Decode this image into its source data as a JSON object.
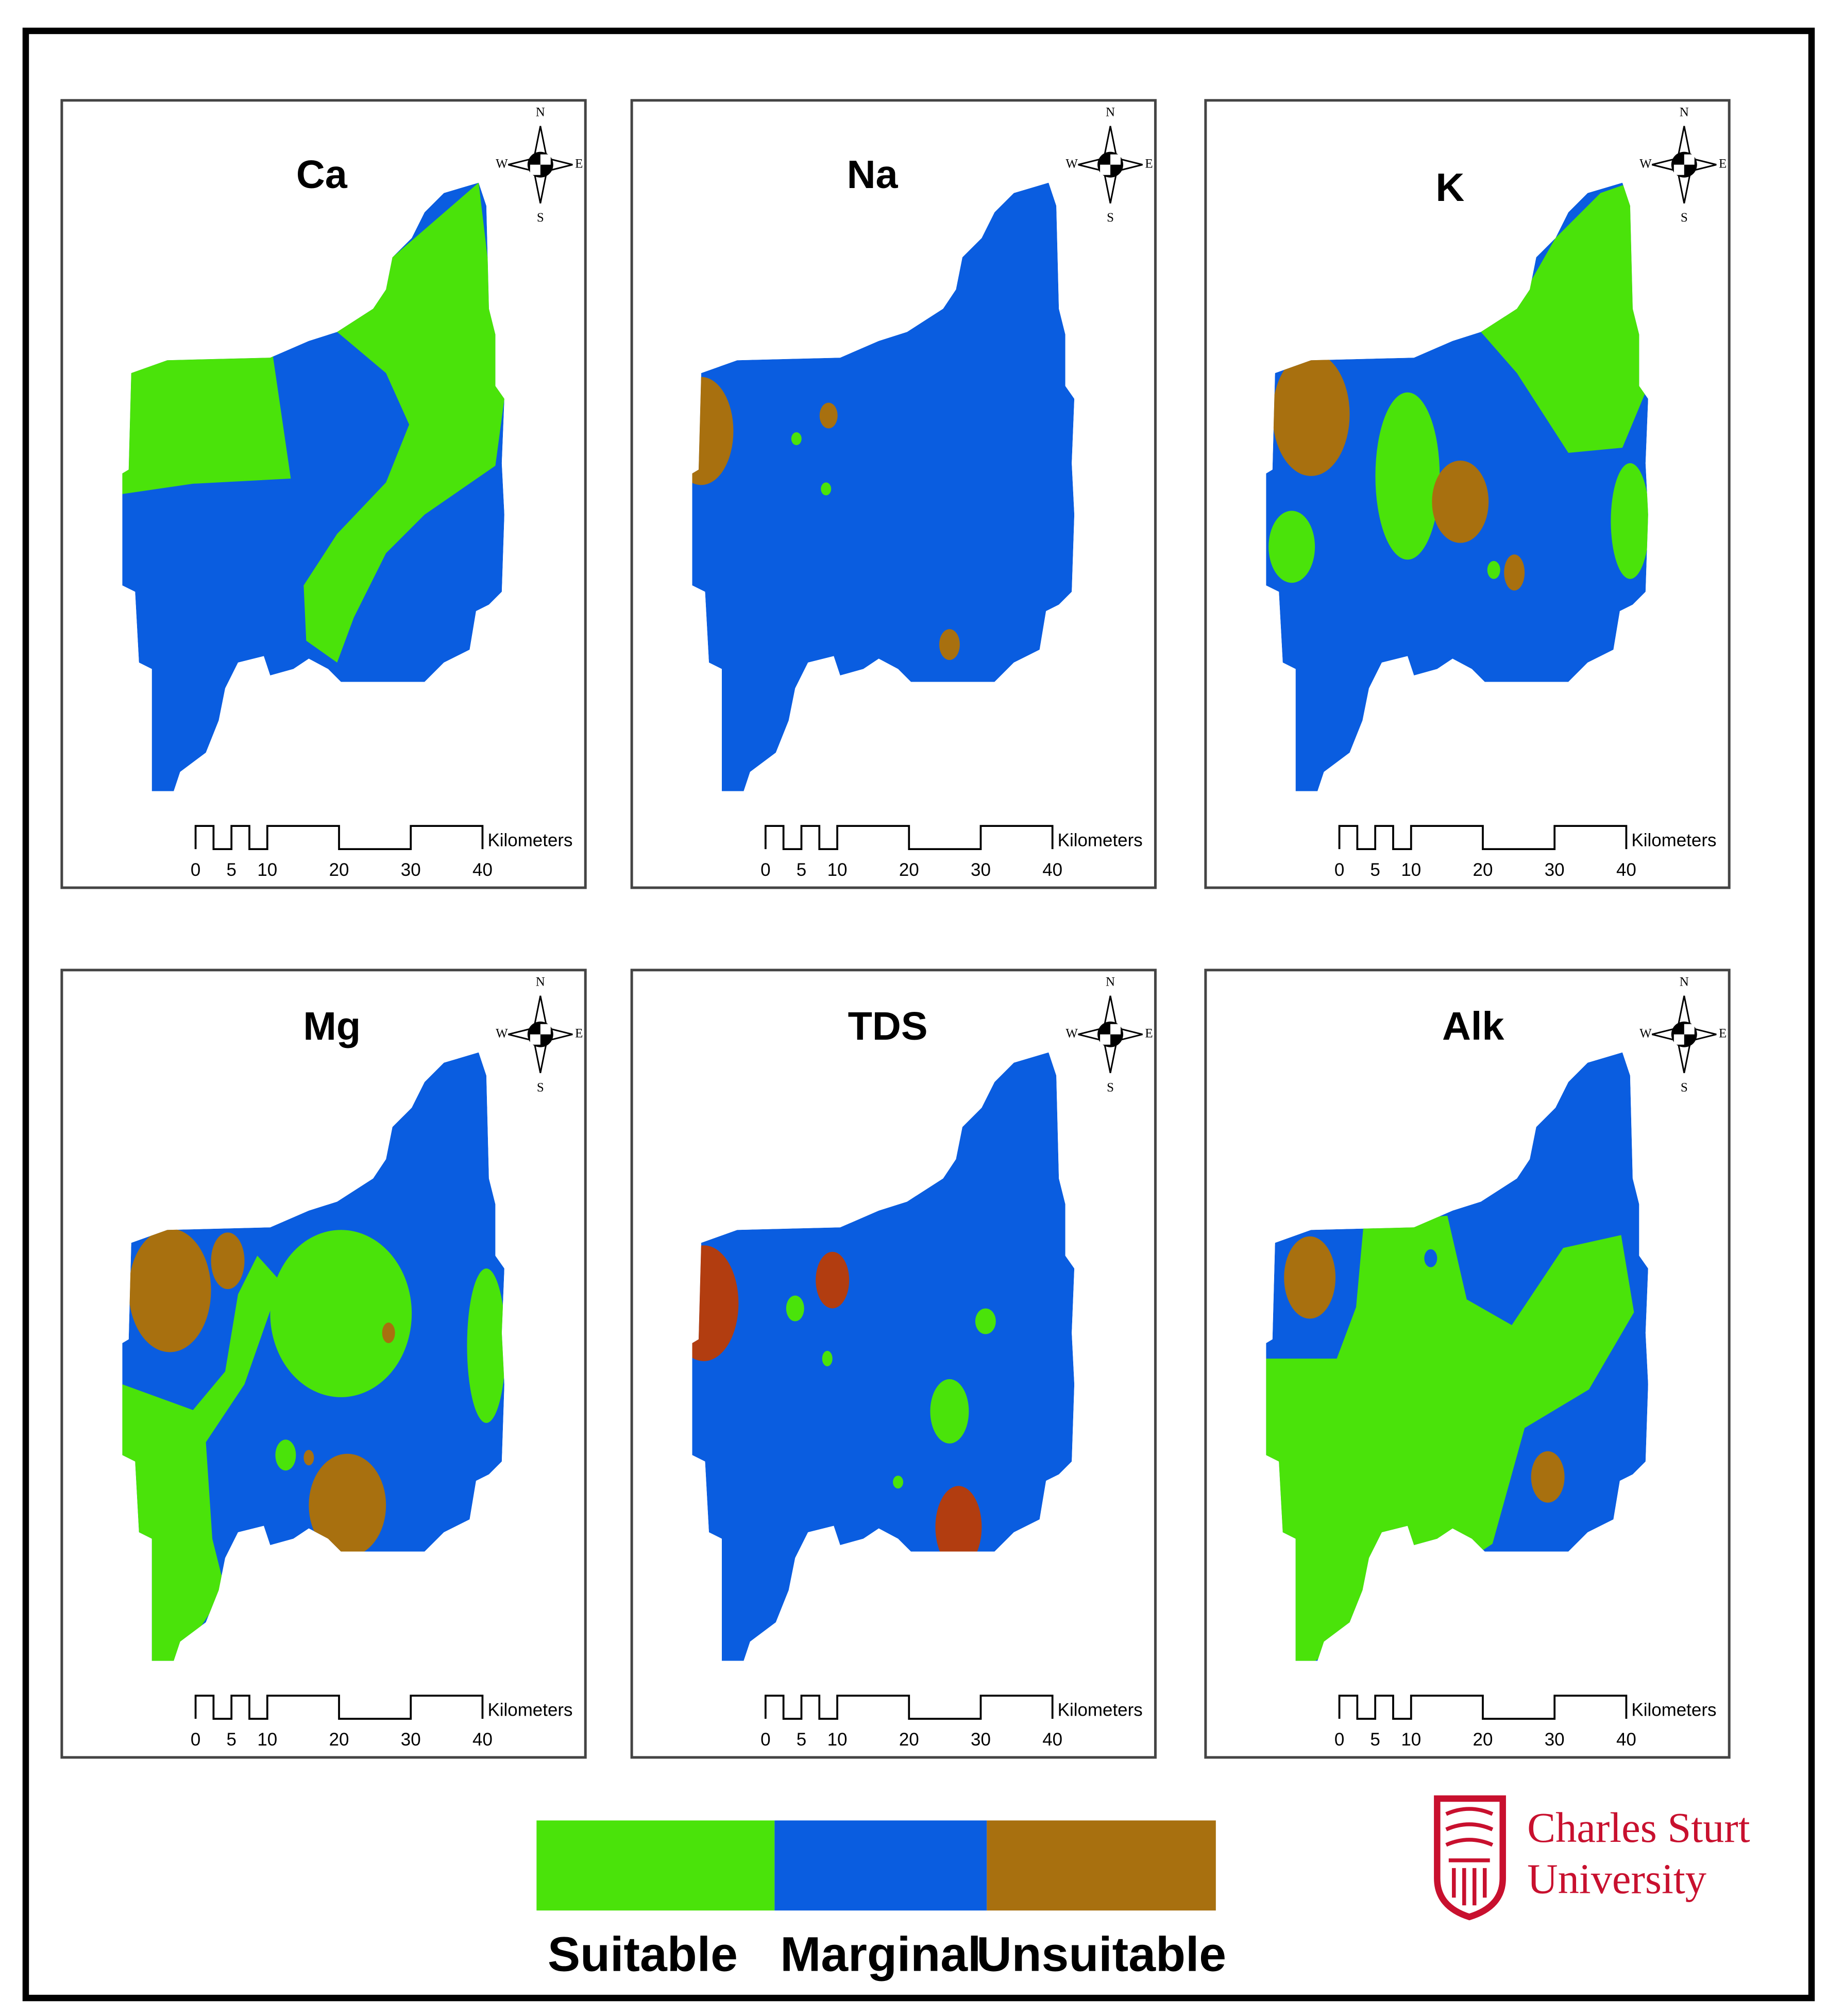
{
  "panels": [
    {
      "title": "Ca"
    },
    {
      "title": "Na"
    },
    {
      "title": "K"
    },
    {
      "title": "Mg"
    },
    {
      "title": "TDS"
    },
    {
      "title": "Alk"
    }
  ],
  "compass": {
    "n": "N",
    "s": "S",
    "e": "E",
    "w": "W"
  },
  "scale_bar": {
    "ticks": [
      0,
      5,
      10,
      20,
      30,
      40
    ],
    "unit": "Kilometers"
  },
  "legend": [
    {
      "label": "Suitable",
      "color": "#4ae30a"
    },
    {
      "label": "Marginal",
      "color": "#0a5de0"
    },
    {
      "label": "Unsuitable",
      "color": "#a8700f"
    }
  ],
  "logo": {
    "line1": "Charles Sturt",
    "line2": "University"
  }
}
